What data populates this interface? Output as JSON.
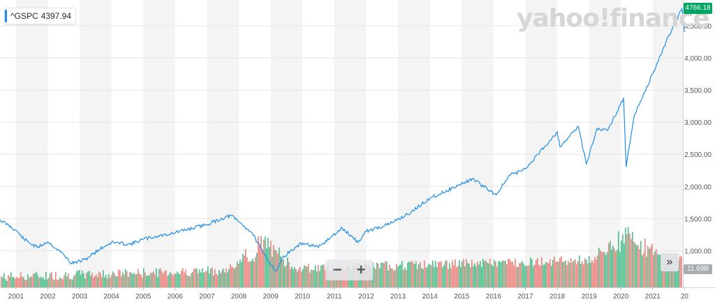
{
  "legend": {
    "symbol": "^GSPC",
    "value": "4397.94"
  },
  "brand": {
    "logo": "yahoo!finance"
  },
  "price_tag": "4766.18",
  "volume_tag": "11.69B",
  "zoom": {
    "minus": "−",
    "plus": "+"
  },
  "scroll_label": "»",
  "colors": {
    "line": "#1f8de8",
    "up": "#28b474",
    "down": "#ec6b66",
    "badge": "#00a562"
  },
  "chart_data": {
    "type": "line",
    "series": [
      {
        "x": [
          "2000-07",
          "2001-01",
          "2001-04",
          "2001-09",
          "2002-01",
          "2002-07",
          "2002-10",
          "2003-03",
          "2003-08",
          "2004-01",
          "2004-08",
          "2005-01",
          "2006-01",
          "2007-01",
          "2007-10",
          "2008-06",
          "2008-10",
          "2009-03",
          "2009-06",
          "2010-01",
          "2010-07",
          "2011-04",
          "2011-10",
          "2012-01",
          "2012-10",
          "2013-06",
          "2014-01",
          "2014-10",
          "2015-05",
          "2016-02",
          "2016-07",
          "2017-01",
          "2018-01",
          "2018-02",
          "2018-09",
          "2018-12",
          "2019-04",
          "2019-08",
          "2020-02",
          "2020-03",
          "2020-06",
          "2021-01",
          "2021-06",
          "2021-12",
          "2022-01"
        ],
        "y": [
          1480,
          1320,
          1180,
          1050,
          1140,
          940,
          800,
          860,
          1010,
          1130,
          1100,
          1180,
          1280,
          1410,
          1550,
          1280,
          980,
          680,
          920,
          1120,
          1050,
          1350,
          1130,
          1300,
          1420,
          1600,
          1820,
          1980,
          2120,
          1870,
          2170,
          2270,
          2850,
          2620,
          2930,
          2350,
          2900,
          2870,
          3380,
          2300,
          3100,
          3750,
          4250,
          4766,
          4398
        ]
      }
    ],
    "volume": {
      "peaks": [
        "2008-10",
        "2020-03"
      ],
      "last": "11.69B"
    },
    "yticks": [
      "1,000.00",
      "1,500.00",
      "2,000.00",
      "2,500.00",
      "3,000.00",
      "3,500.00",
      "4,000.00",
      "4,500.00"
    ],
    "xticks": [
      "2001",
      "2002",
      "2003",
      "2004",
      "2005",
      "2006",
      "2007",
      "2008",
      "2009",
      "2010",
      "2011",
      "2012",
      "2013",
      "2014",
      "2015",
      "2016",
      "2017",
      "2018",
      "2019",
      "2020",
      "2021",
      "20"
    ],
    "ylim": [
      430,
      4900
    ],
    "xlim": [
      "2000-07",
      "2022-02"
    ]
  }
}
